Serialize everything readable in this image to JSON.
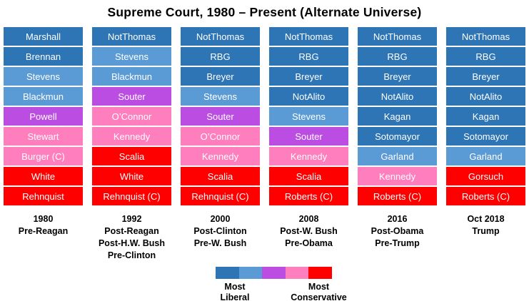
{
  "chart_data": {
    "type": "table",
    "title": "Supreme Court, 1980 – Present (Alternate Universe)",
    "ideology_scale": [
      "most-liberal",
      "liberal",
      "moderate",
      "conservative",
      "most-conservative"
    ],
    "colors": {
      "most-liberal": "#2E75B6",
      "liberal": "#5B9BD5",
      "moderate": "#BB4DE3",
      "conservative": "#FF7EBE",
      "most-conservative": "#FF0000"
    },
    "columns": [
      {
        "year": "1980",
        "label_lines": [
          "1980",
          "Pre-Reagan"
        ],
        "justices": [
          {
            "name": "Marshall",
            "ideology": "most-liberal"
          },
          {
            "name": "Brennan",
            "ideology": "most-liberal"
          },
          {
            "name": "Stevens",
            "ideology": "liberal"
          },
          {
            "name": "Blackmun",
            "ideology": "liberal"
          },
          {
            "name": "Powell",
            "ideology": "moderate"
          },
          {
            "name": "Stewart",
            "ideology": "conservative"
          },
          {
            "name": "Burger (C)",
            "ideology": "conservative"
          },
          {
            "name": "White",
            "ideology": "most-conservative"
          },
          {
            "name": "Rehnquist",
            "ideology": "most-conservative"
          }
        ]
      },
      {
        "year": "1992",
        "label_lines": [
          "1992",
          "Post-Reagan",
          "Post-H.W. Bush",
          "Pre-Clinton"
        ],
        "justices": [
          {
            "name": "NotThomas",
            "ideology": "most-liberal"
          },
          {
            "name": "Stevens",
            "ideology": "liberal"
          },
          {
            "name": "Blackmun",
            "ideology": "liberal"
          },
          {
            "name": "Souter",
            "ideology": "moderate"
          },
          {
            "name": "O’Connor",
            "ideology": "conservative"
          },
          {
            "name": "Kennedy",
            "ideology": "conservative"
          },
          {
            "name": "Scalia",
            "ideology": "most-conservative"
          },
          {
            "name": "White",
            "ideology": "most-conservative"
          },
          {
            "name": "Rehnquist (C)",
            "ideology": "most-conservative"
          }
        ]
      },
      {
        "year": "2000",
        "label_lines": [
          "2000",
          "Post-Clinton",
          "Pre-W. Bush"
        ],
        "justices": [
          {
            "name": "NotThomas",
            "ideology": "most-liberal"
          },
          {
            "name": "RBG",
            "ideology": "most-liberal"
          },
          {
            "name": "Breyer",
            "ideology": "most-liberal"
          },
          {
            "name": "Stevens",
            "ideology": "liberal"
          },
          {
            "name": "Souter",
            "ideology": "moderate"
          },
          {
            "name": "O’Connor",
            "ideology": "conservative"
          },
          {
            "name": "Kennedy",
            "ideology": "conservative"
          },
          {
            "name": "Scalia",
            "ideology": "most-conservative"
          },
          {
            "name": "Rehnquist (C)",
            "ideology": "most-conservative"
          }
        ]
      },
      {
        "year": "2008",
        "label_lines": [
          "2008",
          "Post-W. Bush",
          "Pre-Obama"
        ],
        "justices": [
          {
            "name": "NotThomas",
            "ideology": "most-liberal"
          },
          {
            "name": "RBG",
            "ideology": "most-liberal"
          },
          {
            "name": "Breyer",
            "ideology": "most-liberal"
          },
          {
            "name": "NotAlito",
            "ideology": "most-liberal"
          },
          {
            "name": "Stevens",
            "ideology": "liberal"
          },
          {
            "name": "Souter",
            "ideology": "moderate"
          },
          {
            "name": "Kennedy",
            "ideology": "conservative"
          },
          {
            "name": "Scalia",
            "ideology": "most-conservative"
          },
          {
            "name": "Roberts (C)",
            "ideology": "most-conservative"
          }
        ]
      },
      {
        "year": "2016",
        "label_lines": [
          "2016",
          "Post-Obama",
          "Pre-Trump"
        ],
        "justices": [
          {
            "name": "NotThomas",
            "ideology": "most-liberal"
          },
          {
            "name": "RBG",
            "ideology": "most-liberal"
          },
          {
            "name": "Breyer",
            "ideology": "most-liberal"
          },
          {
            "name": "NotAlito",
            "ideology": "most-liberal"
          },
          {
            "name": "Kagan",
            "ideology": "most-liberal"
          },
          {
            "name": "Sotomayor",
            "ideology": "most-liberal"
          },
          {
            "name": "Garland",
            "ideology": "liberal"
          },
          {
            "name": "Kennedy",
            "ideology": "conservative"
          },
          {
            "name": "Roberts (C)",
            "ideology": "most-conservative"
          }
        ]
      },
      {
        "year": "Oct 2018",
        "label_lines": [
          "Oct 2018",
          "Trump"
        ],
        "justices": [
          {
            "name": "NotThomas",
            "ideology": "most-liberal"
          },
          {
            "name": "RBG",
            "ideology": "most-liberal"
          },
          {
            "name": "Breyer",
            "ideology": "most-liberal"
          },
          {
            "name": "NotAlito",
            "ideology": "most-liberal"
          },
          {
            "name": "Kagan",
            "ideology": "most-liberal"
          },
          {
            "name": "Sotomayor",
            "ideology": "most-liberal"
          },
          {
            "name": "Garland",
            "ideology": "liberal"
          },
          {
            "name": "Gorsuch",
            "ideology": "most-conservative"
          },
          {
            "name": "Roberts (C)",
            "ideology": "most-conservative"
          }
        ]
      }
    ],
    "legend": {
      "left_label_lines": [
        "Most",
        "Liberal"
      ],
      "right_label_lines": [
        "Most",
        "Conservative"
      ]
    }
  }
}
